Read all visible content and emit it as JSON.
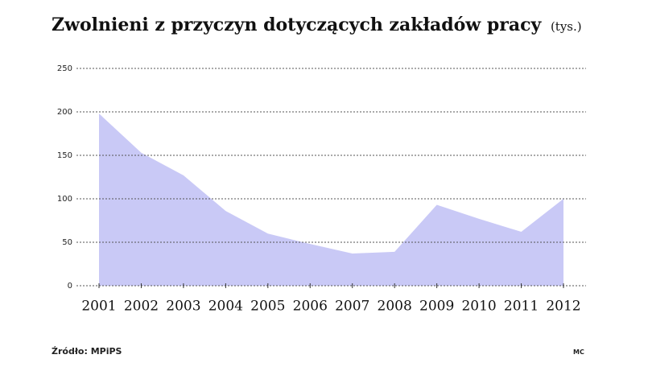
{
  "chart_data": {
    "type": "area",
    "title": "Zwolnieni z przyczyn dotyczących zakładów pracy",
    "subtitle": "(tys.)",
    "categories": [
      "2001",
      "2002",
      "2003",
      "2004",
      "2005",
      "2006",
      "2007",
      "2008",
      "2009",
      "2010",
      "2011",
      "2012"
    ],
    "series": [
      {
        "name": "Zwolnieni",
        "color": "#c9c9f6",
        "values": [
          198,
          153,
          127,
          86,
          60,
          48,
          37,
          39,
          93,
          77,
          62,
          100
        ]
      }
    ],
    "ylim": [
      0,
      250
    ],
    "yticks": [
      0,
      50,
      100,
      150,
      200,
      250
    ],
    "grid": true,
    "source": "Źródło: MPiPS",
    "credit": "MC"
  }
}
